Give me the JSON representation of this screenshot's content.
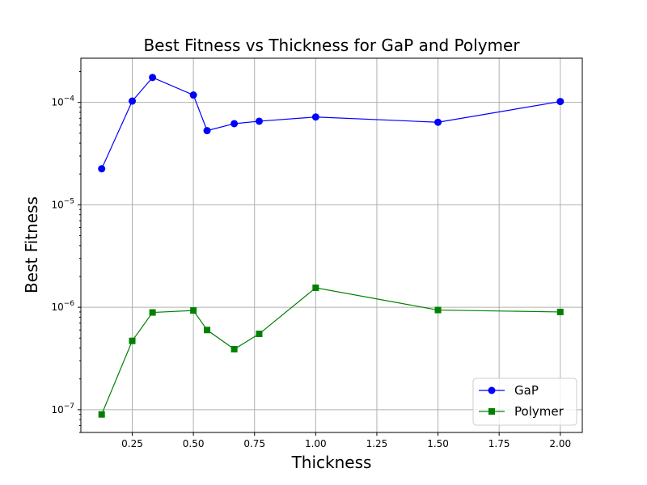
{
  "chart_data": {
    "type": "line",
    "title": "Best Fitness vs Thickness for GaP and Polymer",
    "xlabel": "Thickness",
    "ylabel": "Best Fitness",
    "xlim": [
      0.04,
      2.09
    ],
    "ylim": [
      6e-08,
      0.00027
    ],
    "yscale": "log",
    "grid": true,
    "legend_position": "bottom-right",
    "xticks": [
      0.25,
      0.5,
      0.75,
      1.0,
      1.25,
      1.5,
      1.75,
      2.0
    ],
    "xtick_labels": [
      "0.25",
      "0.50",
      "0.75",
      "1.00",
      "1.25",
      "1.50",
      "1.75",
      "2.00"
    ],
    "yticks": [
      {
        "value": 1e-07,
        "base": "10",
        "exp": "−7"
      },
      {
        "value": 1e-06,
        "base": "10",
        "exp": "−6"
      },
      {
        "value": 1e-05,
        "base": "10",
        "exp": "−5"
      },
      {
        "value": 0.0001,
        "base": "10",
        "exp": "−4"
      }
    ],
    "series": [
      {
        "name": "GaP",
        "color": "#0000ff",
        "marker": "circle",
        "x": [
          0.125,
          0.25,
          0.333,
          0.5,
          0.556,
          0.667,
          0.769,
          1.0,
          1.5,
          2.0
        ],
        "y": [
          2.25e-05,
          0.000103,
          0.000175,
          0.000118,
          5.3e-05,
          6.2e-05,
          6.55e-05,
          7.2e-05,
          6.4e-05,
          0.000102
        ]
      },
      {
        "name": "Polymer",
        "color": "#008000",
        "marker": "square",
        "x": [
          0.125,
          0.25,
          0.333,
          0.5,
          0.556,
          0.667,
          0.769,
          1.0,
          1.5,
          2.0
        ],
        "y": [
          9e-08,
          4.7e-07,
          8.9e-07,
          9.3e-07,
          6e-07,
          3.9e-07,
          5.5e-07,
          1.55e-06,
          9.4e-07,
          9e-07
        ]
      }
    ]
  }
}
